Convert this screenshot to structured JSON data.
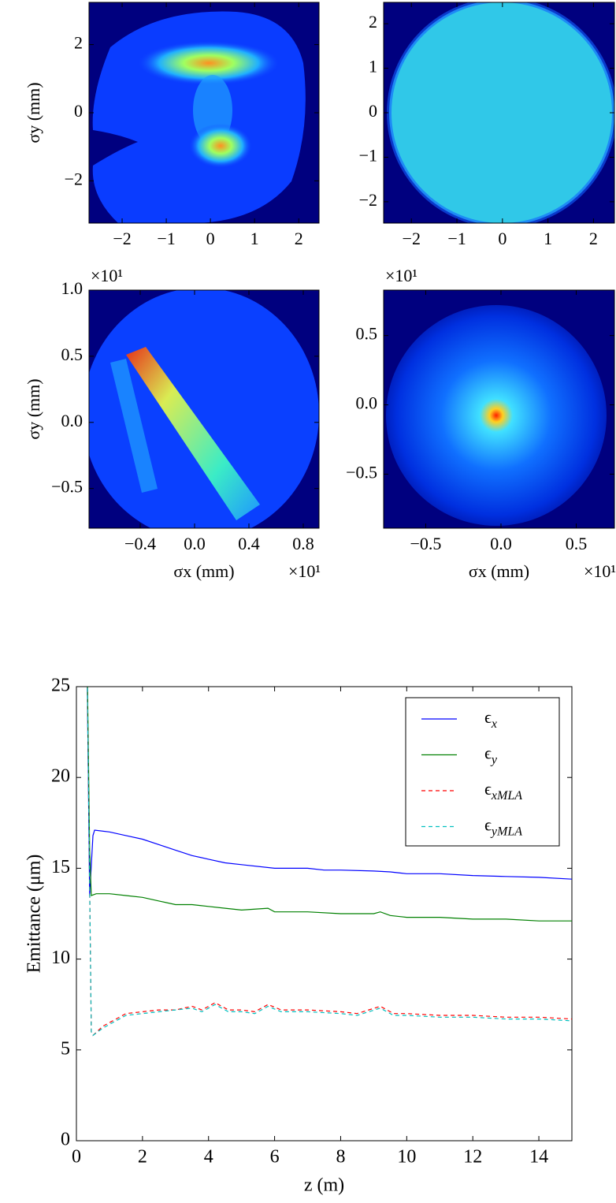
{
  "chart_data": [
    {
      "type": "heatmap",
      "xlim": [
        -2.75,
        2.46
      ],
      "ylim": [
        -3.24,
        3.24
      ],
      "xticks": [
        {
          "value": -2,
          "label": "−2"
        },
        {
          "value": -1,
          "label": "−1"
        },
        0,
        1,
        2
      ],
      "yticks": [
        {
          "value": -2,
          "label": "−2"
        },
        0,
        2
      ],
      "ylabel": "σy (mm)"
    },
    {
      "type": "heatmap",
      "xlim": [
        -2.61,
        2.46
      ],
      "ylim": [
        -2.48,
        2.48
      ],
      "xticks": [
        {
          "value": -2,
          "label": "−2"
        },
        {
          "value": -1,
          "label": "−1"
        },
        0,
        1,
        2
      ],
      "yticks": [
        {
          "value": -2,
          "label": "−2"
        },
        {
          "value": -1,
          "label": "−1"
        },
        0,
        1,
        2
      ]
    },
    {
      "type": "heatmap",
      "xlim": [
        -0.777,
        0.916
      ],
      "ylim": [
        -0.8,
        1.0
      ],
      "xticks": [
        {
          "value": -0.4,
          "label": "−0.4"
        },
        {
          "value": 0,
          "label": "0.0"
        },
        0.4,
        0.8
      ],
      "yticks": [
        {
          "value": -0.5,
          "label": "−0.5"
        },
        {
          "value": 0,
          "label": "0.0"
        },
        0.5,
        {
          "value": 1,
          "label": "1.0"
        }
      ],
      "ylabel": "σy (mm)",
      "xlabel": "σx (mm)",
      "x_offset_label": "×10¹",
      "y_offset_label": "×10¹"
    },
    {
      "type": "heatmap",
      "xlim": [
        -0.78,
        0.754
      ],
      "ylim": [
        -0.89,
        0.828
      ],
      "xticks": [
        {
          "value": -0.5,
          "label": "−0.5"
        },
        {
          "value": 0,
          "label": "0.0"
        },
        0.5
      ],
      "yticks": [
        {
          "value": -0.5,
          "label": "−0.5"
        },
        {
          "value": 0,
          "label": "0.0"
        },
        0.5
      ],
      "xlabel": "σx (mm)",
      "x_offset_label": "×10¹",
      "y_offset_label": "×10¹"
    },
    {
      "type": "line",
      "xlabel": "z (m)",
      "ylabel": "Emittance (μm)",
      "xlim": [
        0,
        15
      ],
      "ylim": [
        0,
        25
      ],
      "xticks": [
        0,
        2,
        4,
        6,
        8,
        10,
        12,
        14
      ],
      "yticks": [
        0,
        5,
        10,
        15,
        20,
        25
      ],
      "legend": "upper right",
      "series": [
        {
          "name": "ϵx",
          "color": "#0000ff",
          "linestyle": "solid",
          "x": [
            0.3,
            0.4,
            0.5,
            0.55,
            1,
            1.5,
            2,
            2.5,
            3,
            3.5,
            4,
            4.5,
            5,
            6,
            7,
            7.5,
            8,
            9,
            9.5,
            10,
            11,
            12,
            13,
            14,
            15
          ],
          "values": [
            30,
            13.5,
            16.8,
            17.1,
            17.0,
            16.8,
            16.6,
            16.3,
            16.0,
            15.7,
            15.5,
            15.3,
            15.2,
            15.0,
            15.0,
            14.9,
            14.9,
            14.85,
            14.8,
            14.7,
            14.7,
            14.6,
            14.55,
            14.5,
            14.4
          ]
        },
        {
          "name": "ϵy",
          "color": "#008000",
          "linestyle": "solid",
          "x": [
            0.3,
            0.4,
            0.45,
            0.6,
            1,
            1.5,
            2,
            2.5,
            3,
            3.5,
            4,
            4.5,
            5,
            5.8,
            6,
            7,
            8,
            9,
            9.2,
            9.5,
            10,
            11,
            12,
            13,
            14,
            15
          ],
          "values": [
            30,
            16,
            13.5,
            13.6,
            13.6,
            13.5,
            13.4,
            13.2,
            13.0,
            13.0,
            12.9,
            12.8,
            12.7,
            12.8,
            12.6,
            12.6,
            12.5,
            12.5,
            12.6,
            12.4,
            12.3,
            12.3,
            12.2,
            12.2,
            12.1,
            12.1
          ]
        },
        {
          "name": "ϵxMLA",
          "color": "#ff0000",
          "linestyle": "dashed",
          "x": [
            0.3,
            0.45,
            0.5,
            0.8,
            1,
            1.5,
            2,
            2.5,
            3,
            3.5,
            3.8,
            4.2,
            4.6,
            5,
            5.4,
            5.8,
            6.2,
            7,
            8,
            8.5,
            9.2,
            9.6,
            10,
            11,
            12,
            13,
            14,
            15
          ],
          "values": [
            30,
            6.0,
            5.8,
            6.3,
            6.5,
            7.0,
            7.1,
            7.2,
            7.2,
            7.4,
            7.2,
            7.6,
            7.2,
            7.2,
            7.1,
            7.5,
            7.2,
            7.2,
            7.1,
            7.0,
            7.4,
            7.0,
            7.0,
            6.9,
            6.9,
            6.8,
            6.8,
            6.7
          ]
        },
        {
          "name": "ϵyMLA",
          "color": "#00bfbf",
          "linestyle": "dashed",
          "x": [
            0.3,
            0.45,
            0.5,
            0.8,
            1,
            1.5,
            2,
            2.5,
            3,
            3.5,
            3.8,
            4.2,
            4.6,
            5,
            5.4,
            5.8,
            6.2,
            7,
            8,
            8.5,
            9.2,
            9.6,
            10,
            11,
            12,
            13,
            14,
            15
          ],
          "values": [
            30,
            6.0,
            5.8,
            6.2,
            6.4,
            6.9,
            7.0,
            7.1,
            7.2,
            7.3,
            7.1,
            7.5,
            7.1,
            7.1,
            7.0,
            7.4,
            7.1,
            7.1,
            7.0,
            6.9,
            7.3,
            6.9,
            6.9,
            6.8,
            6.8,
            6.7,
            6.7,
            6.6
          ]
        }
      ]
    }
  ]
}
